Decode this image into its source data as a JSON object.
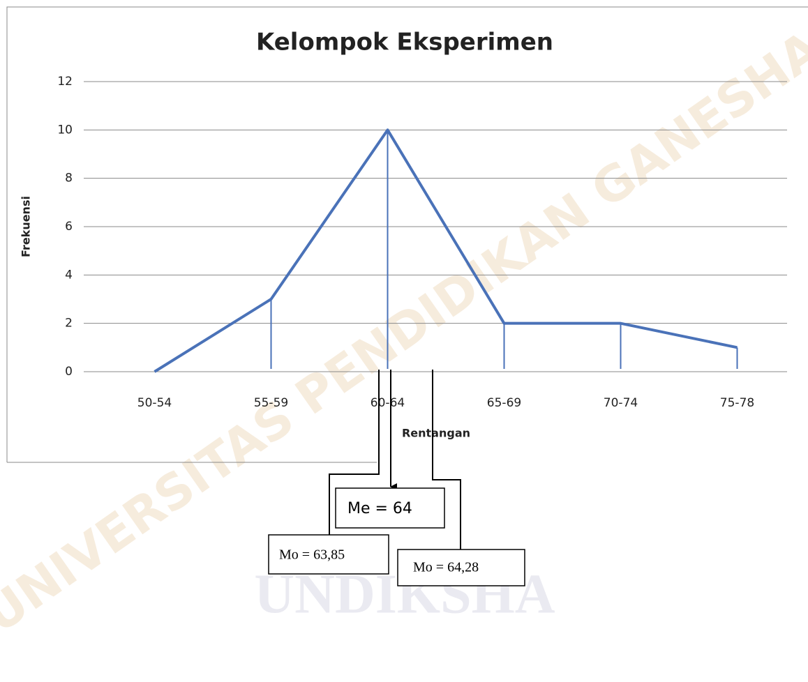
{
  "chart_data": {
    "type": "line",
    "title": "Kelompok Eksperimen",
    "x_label": "Rentangan",
    "y_label": "Frekuensi",
    "categories": [
      "50-54",
      "55-59",
      "60-64",
      "65-69",
      "70-74",
      "75-78"
    ],
    "series": [
      {
        "name": "Frekuensi",
        "color": "#4a72b8",
        "values": [
          0,
          3,
          10,
          2,
          2,
          1
        ]
      }
    ],
    "ylim": [
      0,
      12
    ],
    "yticks": [
      0,
      2,
      4,
      6,
      8,
      10,
      12
    ],
    "grid": true,
    "annotations": [
      "Me = 64",
      "Mo = 63,85",
      "Mo = 64,28"
    ],
    "watermark": [
      "UNIVERSITAS PENDIDIKAN GANESHA",
      "UNDIKSHA"
    ]
  }
}
